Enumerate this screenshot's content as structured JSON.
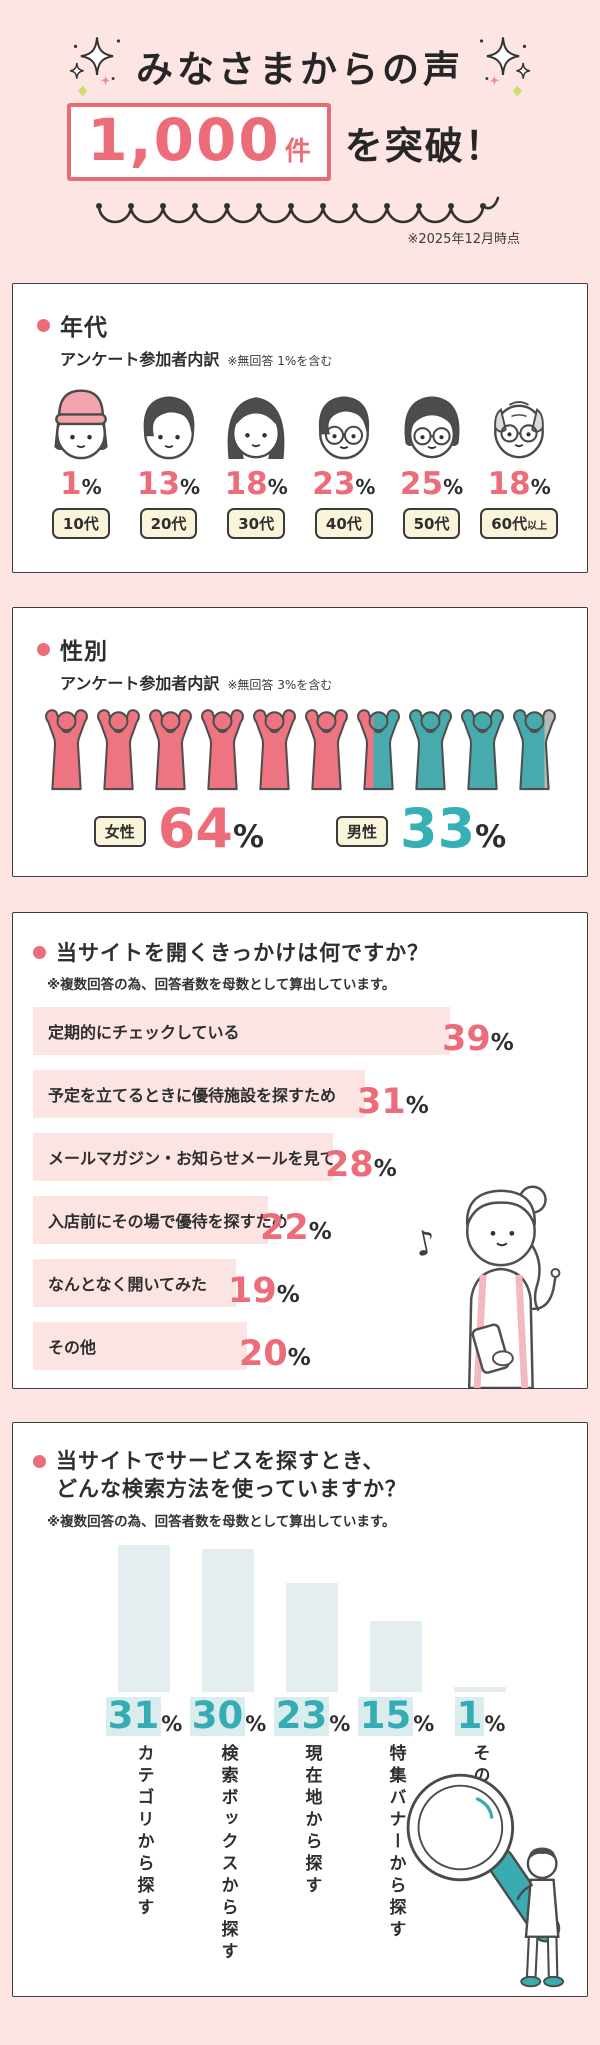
{
  "percent_sign": "%",
  "header": {
    "title": "みなさまからの声",
    "count": "1,000",
    "count_unit": "件",
    "suffix": "を突破！",
    "note": "※2025年12月時点"
  },
  "colors": {
    "background": "#fce5e3",
    "accent_red": "#ec6d79",
    "teal": "#35b0b4",
    "female_pink": "#ed7480",
    "male_teal": "#47abad",
    "no_answer_gray": "#b8b8b8",
    "bar_pink": "#fbe4e1",
    "bar_teal_light": "#e4eef0",
    "badge_cream": "#faf5da"
  },
  "age_section": {
    "title": "年代",
    "subtitle": "アンケート参加者内訳",
    "note": "※無回答 1%を含む",
    "items": [
      {
        "percent": 1,
        "label": "10代",
        "label_small": "",
        "icon": "teen-girl-beanie-icon"
      },
      {
        "percent": 13,
        "label": "20代",
        "label_small": "",
        "icon": "man-20s-icon"
      },
      {
        "percent": 18,
        "label": "30代",
        "label_small": "",
        "icon": "woman-30s-icon"
      },
      {
        "percent": 23,
        "label": "40代",
        "label_small": "",
        "icon": "man-glasses-40s-icon"
      },
      {
        "percent": 25,
        "label": "50代",
        "label_small": "",
        "icon": "woman-glasses-50s-icon"
      },
      {
        "percent": 18,
        "label": "60代",
        "label_small": "以上",
        "icon": "senior-man-60s-icon"
      }
    ]
  },
  "gender_section": {
    "title": "性別",
    "subtitle": "アンケート参加者内訳",
    "note": "※無回答 3%を含む",
    "figure_count": 10,
    "female": {
      "label": "女性",
      "percent": 64
    },
    "male": {
      "label": "男性",
      "percent": 33
    }
  },
  "trigger_section": {
    "title": "当サイトを開くきっかけは何ですか？",
    "note": "※複数回答の為、回答者数を母数として算出しています。",
    "bars": [
      {
        "label": "定期的にチェックしている",
        "percent": 39
      },
      {
        "label": "予定を立てるときに優待施設を探すため",
        "percent": 31
      },
      {
        "label": "メールマガジン・お知らせメールを見て",
        "percent": 28
      },
      {
        "label": "入店前にその場で優待を探すため",
        "percent": 22
      },
      {
        "label": "なんとなく開いてみた",
        "percent": 19
      },
      {
        "label": "その他",
        "percent": 20
      }
    ]
  },
  "search_section": {
    "title_line1": "当サイトでサービスを探すとき、",
    "title_line2": "どんな検索方法を使っていますか？",
    "note": "※複数回答の為、回答者数を母数として算出しています。",
    "bars": [
      {
        "label": "カテゴリから探す",
        "percent": 31
      },
      {
        "label": "検索ボックスから探す",
        "percent": 30
      },
      {
        "label": "現在地から探す",
        "percent": 23
      },
      {
        "label": "特集バナーから探す",
        "percent": 15
      },
      {
        "label": "その他",
        "percent": 1
      }
    ]
  },
  "illustrations": {
    "music_note": "♪"
  },
  "chart_data": [
    {
      "type": "bar",
      "style": "pictogram-faces",
      "title": "年代 アンケート参加者内訳",
      "note": "※無回答 1%を含む",
      "categories": [
        "10代",
        "20代",
        "30代",
        "40代",
        "50代",
        "60代以上"
      ],
      "values": [
        1,
        13,
        18,
        23,
        25,
        18
      ],
      "unit": "%"
    },
    {
      "type": "bar",
      "style": "pictogram-people-10",
      "title": "性別 アンケート参加者内訳",
      "note": "※無回答 3%を含む",
      "categories": [
        "女性",
        "男性",
        "無回答"
      ],
      "values": [
        64,
        33,
        3
      ],
      "unit": "%"
    },
    {
      "type": "bar",
      "orientation": "horizontal",
      "title": "当サイトを開くきっかけは何ですか？",
      "note": "※複数回答の為、回答者数を母数として算出しています。",
      "categories": [
        "定期的にチェックしている",
        "予定を立てるときに優待施設を探すため",
        "メールマガジン・お知らせメールを見て",
        "入店前にその場で優待を探すため",
        "なんとなく開いてみた",
        "その他"
      ],
      "values": [
        39,
        31,
        28,
        22,
        19,
        20
      ],
      "unit": "%",
      "xlim": [
        0,
        40
      ]
    },
    {
      "type": "bar",
      "orientation": "vertical",
      "title": "当サイトでサービスを探すとき、どんな検索方法を使っていますか？",
      "note": "※複数回答の為、回答者数を母数として算出しています。",
      "categories": [
        "カテゴリから探す",
        "検索ボックスから探す",
        "現在地から探す",
        "特集バナーから探す",
        "その他"
      ],
      "values": [
        31,
        30,
        23,
        15,
        1
      ],
      "unit": "%",
      "ylim": [
        0,
        32
      ]
    }
  ]
}
